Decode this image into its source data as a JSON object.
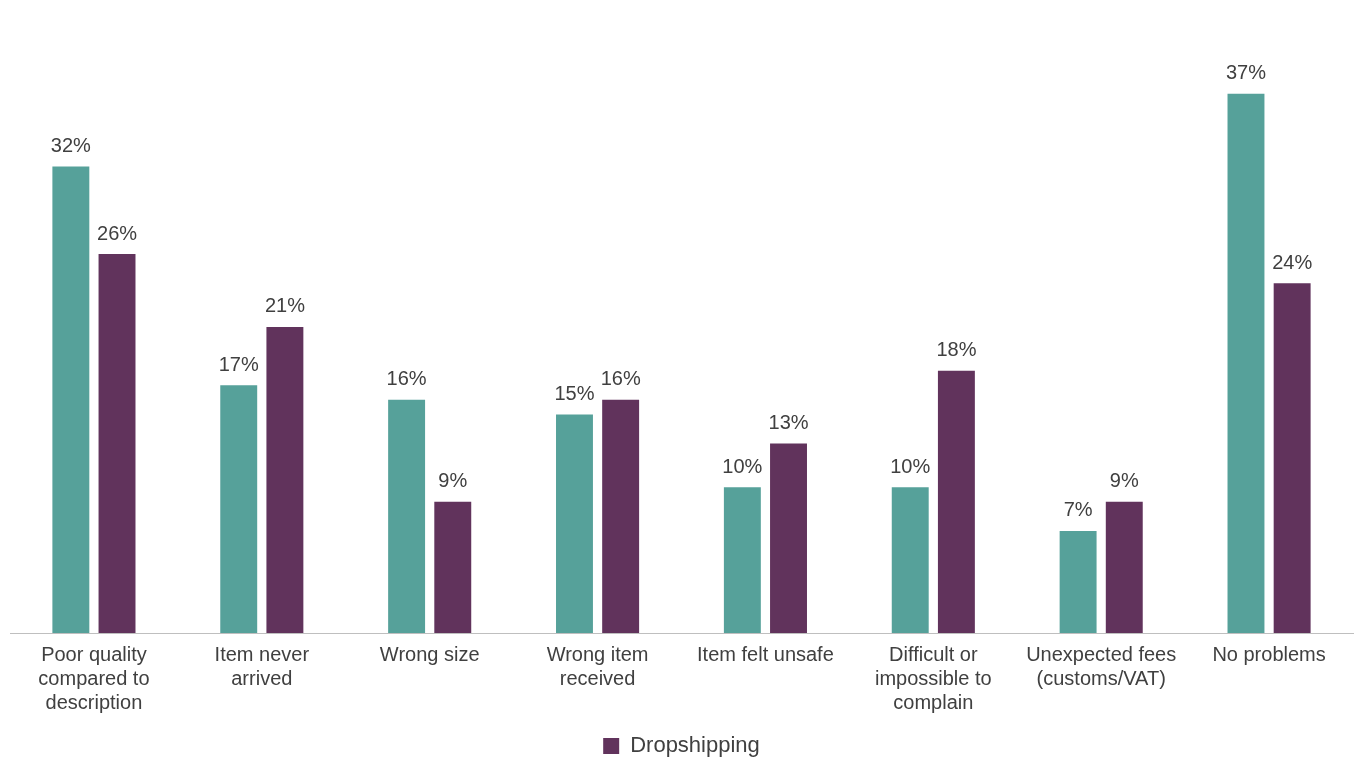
{
  "chart_data": {
    "type": "bar",
    "categories": [
      "Poor quality compared to description",
      "Item never arrived",
      "Wrong size",
      "Wrong item received",
      "Item felt unsafe",
      "Difficult or impossible to complain",
      "Unexpected fees (customs/VAT)",
      "No problems"
    ],
    "series": [
      {
        "color": "#56a19a",
        "values": [
          32,
          17,
          16,
          15,
          10,
          10,
          7,
          37
        ],
        "value_labels": [
          "32%",
          "17%",
          "16%",
          "15%",
          "10%",
          "10%",
          "7%",
          "37%"
        ]
      },
      {
        "name": "Dropshipping",
        "color": "#61335c",
        "values": [
          26,
          21,
          9,
          16,
          13,
          18,
          9,
          24
        ],
        "value_labels": [
          "26%",
          "21%",
          "9%",
          "16%",
          "13%",
          "18%",
          "9%",
          "24%"
        ]
      }
    ],
    "legend": "bottom",
    "grid": false
  }
}
